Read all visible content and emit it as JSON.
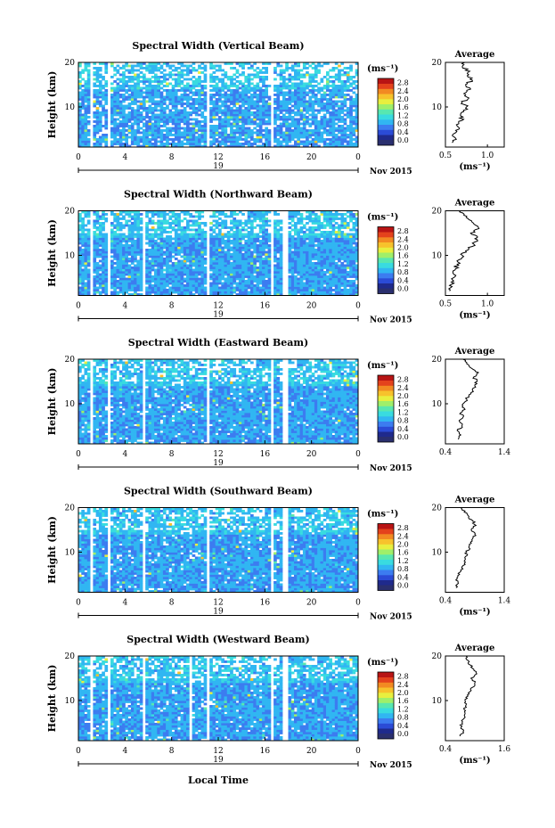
{
  "figure": {
    "xlabel_bottom": "Local Time",
    "date_label": "Nov 2015",
    "day_label": "19",
    "unit_label": "(ms⁻¹)",
    "profile_title": "Average",
    "colors": {
      "colormap": [
        "#1f2a8c",
        "#2b4bd6",
        "#3c7cf0",
        "#31b6f2",
        "#39dbe0",
        "#58e7b0",
        "#9fef6a",
        "#e8ef3f",
        "#f7c22c",
        "#f28a22",
        "#e4421c",
        "#b81414"
      ],
      "background": "#ffffff",
      "low_bin": "#2a2f6e"
    }
  },
  "chart_data": [
    {
      "type": "heatmap",
      "title": "Spectral Width (Vertical Beam)",
      "ylabel": "Height (km)",
      "xlim": [
        0,
        24
      ],
      "ylim": [
        1,
        20
      ],
      "x_ticks": [
        "0",
        "4",
        "8",
        "12",
        "16",
        "20",
        "0"
      ],
      "y_ticks": [
        "10",
        "20"
      ],
      "colorbar_ticks": [
        "2.8",
        "2.4",
        "2.0",
        "1.6",
        "1.2",
        "0.8",
        "0.4",
        "0.0"
      ],
      "colorbar_range": [
        0.0,
        3.0
      ],
      "gaps": [
        [
          0.9,
          1.2
        ],
        [
          2.5,
          2.8
        ],
        [
          10.9,
          11.3
        ],
        [
          16.4,
          16.7
        ]
      ],
      "profile": {
        "title": "Average",
        "xlabel": "(ms⁻¹)",
        "xlim": [
          0.5,
          1.2
        ],
        "x_ticks": [
          "0.5",
          "1.0"
        ],
        "y_ticks": [
          "10",
          "20"
        ],
        "height": [
          2,
          3,
          4,
          5,
          6,
          7,
          8,
          9,
          10,
          11,
          12,
          13,
          14,
          15,
          16,
          17,
          18,
          19,
          20
        ],
        "width": [
          0.58,
          0.62,
          0.6,
          0.66,
          0.63,
          0.7,
          0.68,
          0.72,
          0.75,
          0.7,
          0.78,
          0.72,
          0.8,
          0.74,
          0.82,
          0.76,
          0.79,
          0.7,
          0.73
        ]
      }
    },
    {
      "type": "heatmap",
      "title": "Spectral Width (Northward Beam)",
      "ylabel": "Height (km)",
      "xlim": [
        0,
        24
      ],
      "ylim": [
        1,
        20
      ],
      "x_ticks": [
        "0",
        "4",
        "8",
        "12",
        "16",
        "20",
        "0"
      ],
      "y_ticks": [
        "10",
        "20"
      ],
      "colorbar_ticks": [
        "2.8",
        "2.4",
        "2.0",
        "1.6",
        "1.2",
        "0.8",
        "0.4",
        "0.0"
      ],
      "colorbar_range": [
        0.0,
        3.0
      ],
      "gaps": [
        [
          0.9,
          1.2
        ],
        [
          2.5,
          2.8
        ],
        [
          5.5,
          5.8
        ],
        [
          10.9,
          11.3
        ],
        [
          16.4,
          16.7
        ],
        [
          17.6,
          18.0
        ]
      ],
      "profile": {
        "title": "Average",
        "xlabel": "(ms⁻¹)",
        "xlim": [
          0.5,
          1.2
        ],
        "x_ticks": [
          "0.5",
          "1.0"
        ],
        "y_ticks": [
          "10",
          "20"
        ],
        "height": [
          2,
          3,
          4,
          5,
          6,
          7,
          8,
          9,
          10,
          11,
          12,
          13,
          14,
          15,
          16,
          17,
          18,
          19,
          20
        ],
        "width": [
          0.55,
          0.58,
          0.57,
          0.6,
          0.59,
          0.62,
          0.64,
          0.66,
          0.7,
          0.74,
          0.82,
          0.85,
          0.88,
          0.8,
          0.9,
          0.84,
          0.78,
          0.72,
          0.68
        ]
      }
    },
    {
      "type": "heatmap",
      "title": "Spectral Width (Eastward Beam)",
      "ylabel": "Height (km)",
      "xlim": [
        0,
        24
      ],
      "ylim": [
        1,
        20
      ],
      "x_ticks": [
        "0",
        "4",
        "8",
        "12",
        "16",
        "20",
        "0"
      ],
      "y_ticks": [
        "10",
        "20"
      ],
      "colorbar_ticks": [
        "2.8",
        "2.4",
        "2.0",
        "1.6",
        "1.2",
        "0.8",
        "0.4",
        "0.0"
      ],
      "colorbar_range": [
        0.0,
        3.0
      ],
      "gaps": [
        [
          0.9,
          1.2
        ],
        [
          2.5,
          2.8
        ],
        [
          5.5,
          5.8
        ],
        [
          10.9,
          11.3
        ],
        [
          16.4,
          16.7
        ],
        [
          17.6,
          18.0
        ]
      ],
      "profile": {
        "title": "Average",
        "xlabel": "",
        "xlim": [
          0.4,
          1.4
        ],
        "x_ticks": [
          "0.4",
          "1.4"
        ],
        "y_ticks": [
          "10",
          "20"
        ],
        "height": [
          2,
          3,
          4,
          5,
          6,
          7,
          8,
          9,
          10,
          11,
          12,
          13,
          14,
          15,
          16,
          17,
          18,
          19,
          20
        ],
        "width": [
          0.62,
          0.66,
          0.6,
          0.68,
          0.64,
          0.7,
          0.66,
          0.72,
          0.7,
          0.76,
          0.8,
          0.86,
          0.9,
          0.94,
          0.88,
          0.96,
          0.84,
          0.76,
          0.7
        ]
      }
    },
    {
      "type": "heatmap",
      "title": "Spectral Width (Southward Beam)",
      "ylabel": "Height (km)",
      "xlim": [
        0,
        24
      ],
      "ylim": [
        1,
        20
      ],
      "x_ticks": [
        "0",
        "4",
        "8",
        "12",
        "16",
        "20",
        "0"
      ],
      "y_ticks": [
        "10",
        "20"
      ],
      "colorbar_ticks": [
        "2.8",
        "2.4",
        "2.0",
        "1.6",
        "1.2",
        "0.8",
        "0.4",
        "0.0"
      ],
      "colorbar_range": [
        0.0,
        3.0
      ],
      "gaps": [
        [
          0.9,
          1.2
        ],
        [
          2.5,
          2.8
        ],
        [
          5.5,
          5.8
        ],
        [
          10.9,
          11.3
        ],
        [
          16.4,
          16.7
        ],
        [
          17.6,
          18.0
        ]
      ],
      "profile": {
        "title": "Average",
        "xlabel": "(ms⁻¹)",
        "xlim": [
          0.4,
          1.4
        ],
        "x_ticks": [
          "0.4",
          "1.4"
        ],
        "y_ticks": [
          "10",
          "20"
        ],
        "height": [
          2,
          3,
          4,
          5,
          6,
          7,
          8,
          9,
          10,
          11,
          12,
          13,
          14,
          15,
          16,
          17,
          18,
          19,
          20
        ],
        "width": [
          0.58,
          0.62,
          0.6,
          0.64,
          0.66,
          0.7,
          0.72,
          0.74,
          0.76,
          0.8,
          0.84,
          0.86,
          0.9,
          0.84,
          0.92,
          0.86,
          0.8,
          0.72,
          0.66
        ]
      }
    },
    {
      "type": "heatmap",
      "title": "Spectral Width (Westward Beam)",
      "ylabel": "Height (km)",
      "xlim": [
        0,
        24
      ],
      "ylim": [
        1,
        20
      ],
      "x_ticks": [
        "0",
        "4",
        "8",
        "12",
        "16",
        "20",
        "0"
      ],
      "y_ticks": [
        "10",
        "20"
      ],
      "colorbar_ticks": [
        "2.8",
        "2.4",
        "2.0",
        "1.6",
        "1.2",
        "0.8",
        "0.4",
        "0.0"
      ],
      "colorbar_range": [
        0.0,
        3.0
      ],
      "gaps": [
        [
          0.9,
          1.2
        ],
        [
          2.5,
          2.8
        ],
        [
          5.5,
          5.8
        ],
        [
          9.4,
          9.7
        ],
        [
          10.9,
          11.3
        ],
        [
          16.4,
          16.7
        ],
        [
          17.6,
          18.0
        ]
      ],
      "profile": {
        "title": "Average",
        "xlabel": "(ms⁻¹)",
        "xlim": [
          0.4,
          1.6
        ],
        "x_ticks": [
          "0.4",
          "1.6"
        ],
        "y_ticks": [
          "10",
          "20"
        ],
        "height": [
          2,
          3,
          4,
          5,
          6,
          7,
          8,
          9,
          10,
          11,
          12,
          13,
          14,
          15,
          16,
          17,
          18,
          19,
          20
        ],
        "width": [
          0.7,
          0.76,
          0.72,
          0.74,
          0.78,
          0.8,
          0.78,
          0.82,
          0.8,
          0.86,
          0.9,
          0.96,
          1.0,
          0.92,
          1.04,
          0.98,
          0.9,
          0.86,
          0.82
        ]
      }
    }
  ]
}
